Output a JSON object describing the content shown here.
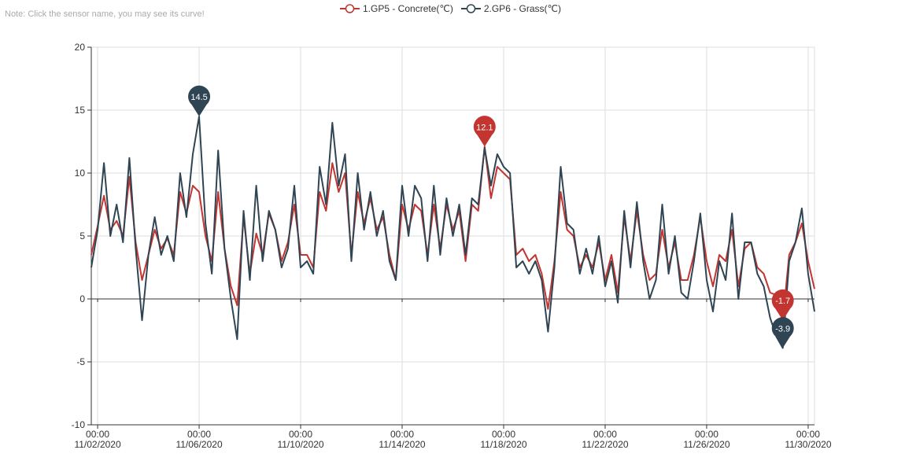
{
  "note": "Note: Click the sensor name, you may see its curve!",
  "legend": {
    "items": [
      {
        "label": "1.GP5 - Concrete(℃)",
        "color": "#c23531"
      },
      {
        "label": "2.GP6 - Grass(℃)",
        "color": "#2f4554"
      }
    ]
  },
  "chart_data": {
    "type": "line",
    "title": "",
    "xlabel": "",
    "ylabel": "",
    "ylim": [
      -10,
      20
    ],
    "yticks": [
      -10,
      -5,
      0,
      5,
      10,
      15,
      20
    ],
    "x_range": [
      "2020-11-01 18:00",
      "2020-11-30 06:00"
    ],
    "x_ticks": [
      {
        "time": "00:00",
        "date": "11/02/2020",
        "x": "2020-11-02 00:00"
      },
      {
        "time": "00:00",
        "date": "11/06/2020",
        "x": "2020-11-06 00:00"
      },
      {
        "time": "00:00",
        "date": "11/10/2020",
        "x": "2020-11-10 00:00"
      },
      {
        "time": "00:00",
        "date": "11/14/2020",
        "x": "2020-11-14 00:00"
      },
      {
        "time": "00:00",
        "date": "11/18/2020",
        "x": "2020-11-18 00:00"
      },
      {
        "time": "00:00",
        "date": "11/22/2020",
        "x": "2020-11-22 00:00"
      },
      {
        "time": "00:00",
        "date": "11/26/2020",
        "x": "2020-11-26 00:00"
      },
      {
        "time": "00:00",
        "date": "11/30/2020",
        "x": "2020-11-30 00:00"
      }
    ],
    "grid": true,
    "legend_position": "top-center",
    "series": [
      {
        "name": "1.GP5 - Concrete(℃)",
        "color": "#c23531",
        "points": [
          [
            "2020-11-01 18:00",
            3.5
          ],
          [
            "2020-11-02 00:00",
            5.8
          ],
          [
            "2020-11-02 06:00",
            8.2
          ],
          [
            "2020-11-02 12:00",
            5.5
          ],
          [
            "2020-11-02 18:00",
            6.2
          ],
          [
            "2020-11-03 00:00",
            5.0
          ],
          [
            "2020-11-03 06:00",
            9.7
          ],
          [
            "2020-11-03 12:00",
            4.5
          ],
          [
            "2020-11-03 18:00",
            1.5
          ],
          [
            "2020-11-04 00:00",
            3.5
          ],
          [
            "2020-11-04 06:00",
            5.5
          ],
          [
            "2020-11-04 12:00",
            4.0
          ],
          [
            "2020-11-04 18:00",
            4.8
          ],
          [
            "2020-11-05 00:00",
            3.5
          ],
          [
            "2020-11-05 06:00",
            8.5
          ],
          [
            "2020-11-05 12:00",
            6.8
          ],
          [
            "2020-11-05 18:00",
            9.0
          ],
          [
            "2020-11-06 00:00",
            8.5
          ],
          [
            "2020-11-06 06:00",
            5.0
          ],
          [
            "2020-11-06 12:00",
            3.0
          ],
          [
            "2020-11-06 18:00",
            8.5
          ],
          [
            "2020-11-07 00:00",
            4.0
          ],
          [
            "2020-11-07 06:00",
            1.0
          ],
          [
            "2020-11-07 12:00",
            -0.5
          ],
          [
            "2020-11-07 18:00",
            6.5
          ],
          [
            "2020-11-08 00:00",
            2.0
          ],
          [
            "2020-11-08 06:00",
            5.2
          ],
          [
            "2020-11-08 12:00",
            3.5
          ],
          [
            "2020-11-08 18:00",
            6.8
          ],
          [
            "2020-11-09 00:00",
            5.5
          ],
          [
            "2020-11-09 06:00",
            3.0
          ],
          [
            "2020-11-09 12:00",
            4.5
          ],
          [
            "2020-11-09 18:00",
            7.5
          ],
          [
            "2020-11-10 00:00",
            3.5
          ],
          [
            "2020-11-10 06:00",
            3.5
          ],
          [
            "2020-11-10 12:00",
            2.5
          ],
          [
            "2020-11-10 18:00",
            8.5
          ],
          [
            "2020-11-11 00:00",
            7.0
          ],
          [
            "2020-11-11 06:00",
            10.8
          ],
          [
            "2020-11-11 12:00",
            8.5
          ],
          [
            "2020-11-11 18:00",
            10.0
          ],
          [
            "2020-11-12 00:00",
            3.5
          ],
          [
            "2020-11-12 06:00",
            8.5
          ],
          [
            "2020-11-12 12:00",
            6.0
          ],
          [
            "2020-11-12 18:00",
            8.0
          ],
          [
            "2020-11-13 00:00",
            5.5
          ],
          [
            "2020-11-13 06:00",
            6.5
          ],
          [
            "2020-11-13 12:00",
            3.5
          ],
          [
            "2020-11-13 18:00",
            1.5
          ],
          [
            "2020-11-14 00:00",
            7.5
          ],
          [
            "2020-11-14 06:00",
            5.5
          ],
          [
            "2020-11-14 12:00",
            7.5
          ],
          [
            "2020-11-14 18:00",
            7.0
          ],
          [
            "2020-11-15 00:00",
            3.5
          ],
          [
            "2020-11-15 06:00",
            7.5
          ],
          [
            "2020-11-15 12:00",
            4.0
          ],
          [
            "2020-11-15 18:00",
            7.5
          ],
          [
            "2020-11-16 00:00",
            5.5
          ],
          [
            "2020-11-16 06:00",
            7.0
          ],
          [
            "2020-11-16 12:00",
            3.0
          ],
          [
            "2020-11-16 18:00",
            7.5
          ],
          [
            "2020-11-17 00:00",
            7.0
          ],
          [
            "2020-11-17 06:00",
            12.1
          ],
          [
            "2020-11-17 12:00",
            8.0
          ],
          [
            "2020-11-17 18:00",
            10.5
          ],
          [
            "2020-11-18 00:00",
            10.0
          ],
          [
            "2020-11-18 06:00",
            9.5
          ],
          [
            "2020-11-18 12:00",
            3.5
          ],
          [
            "2020-11-18 18:00",
            4.0
          ],
          [
            "2020-11-19 00:00",
            3.0
          ],
          [
            "2020-11-19 06:00",
            3.5
          ],
          [
            "2020-11-19 12:00",
            2.0
          ],
          [
            "2020-11-19 18:00",
            -0.8
          ],
          [
            "2020-11-20 00:00",
            3.0
          ],
          [
            "2020-11-20 06:00",
            8.5
          ],
          [
            "2020-11-20 12:00",
            5.5
          ],
          [
            "2020-11-20 18:00",
            5.0
          ],
          [
            "2020-11-21 00:00",
            2.5
          ],
          [
            "2020-11-21 06:00",
            3.5
          ],
          [
            "2020-11-21 12:00",
            2.5
          ],
          [
            "2020-11-21 18:00",
            4.5
          ],
          [
            "2020-11-22 00:00",
            1.5
          ],
          [
            "2020-11-22 06:00",
            3.5
          ],
          [
            "2020-11-22 12:00",
            0.5
          ],
          [
            "2020-11-22 18:00",
            6.5
          ],
          [
            "2020-11-23 00:00",
            3.0
          ],
          [
            "2020-11-23 06:00",
            7.0
          ],
          [
            "2020-11-23 12:00",
            3.5
          ],
          [
            "2020-11-23 18:00",
            1.5
          ],
          [
            "2020-11-24 00:00",
            2.0
          ],
          [
            "2020-11-24 06:00",
            5.5
          ],
          [
            "2020-11-24 12:00",
            2.5
          ],
          [
            "2020-11-24 18:00",
            4.5
          ],
          [
            "2020-11-25 00:00",
            1.5
          ],
          [
            "2020-11-25 06:00",
            1.5
          ],
          [
            "2020-11-25 12:00",
            3.5
          ],
          [
            "2020-11-25 18:00",
            6.5
          ],
          [
            "2020-11-26 00:00",
            3.0
          ],
          [
            "2020-11-26 06:00",
            1.0
          ],
          [
            "2020-11-26 12:00",
            3.5
          ],
          [
            "2020-11-26 18:00",
            3.0
          ],
          [
            "2020-11-27 00:00",
            5.5
          ],
          [
            "2020-11-27 06:00",
            1.0
          ],
          [
            "2020-11-27 12:00",
            4.0
          ],
          [
            "2020-11-27 18:00",
            4.5
          ],
          [
            "2020-11-28 00:00",
            2.5
          ],
          [
            "2020-11-28 06:00",
            2.0
          ],
          [
            "2020-11-28 12:00",
            0.5
          ],
          [
            "2020-11-28 18:00",
            0.3
          ],
          [
            "2020-11-29 00:00",
            -1.7
          ],
          [
            "2020-11-29 06:00",
            3.5
          ],
          [
            "2020-11-29 12:00",
            4.5
          ],
          [
            "2020-11-29 18:00",
            6.0
          ],
          [
            "2020-11-30 00:00",
            3.0
          ],
          [
            "2020-11-30 06:00",
            0.8
          ]
        ]
      },
      {
        "name": "2.GP6 - Grass(℃)",
        "color": "#2f4554",
        "points": [
          [
            "2020-11-01 18:00",
            2.5
          ],
          [
            "2020-11-02 00:00",
            5.5
          ],
          [
            "2020-11-02 06:00",
            10.8
          ],
          [
            "2020-11-02 12:00",
            5.0
          ],
          [
            "2020-11-02 18:00",
            7.5
          ],
          [
            "2020-11-03 00:00",
            4.5
          ],
          [
            "2020-11-03 06:00",
            11.2
          ],
          [
            "2020-11-03 12:00",
            4.0
          ],
          [
            "2020-11-03 18:00",
            -1.7
          ],
          [
            "2020-11-04 00:00",
            3.5
          ],
          [
            "2020-11-04 06:00",
            6.5
          ],
          [
            "2020-11-04 12:00",
            3.5
          ],
          [
            "2020-11-04 18:00",
            5.0
          ],
          [
            "2020-11-05 00:00",
            3.0
          ],
          [
            "2020-11-05 06:00",
            10.0
          ],
          [
            "2020-11-05 12:00",
            6.5
          ],
          [
            "2020-11-05 18:00",
            11.5
          ],
          [
            "2020-11-06 00:00",
            14.5
          ],
          [
            "2020-11-06 06:00",
            6.0
          ],
          [
            "2020-11-06 12:00",
            2.0
          ],
          [
            "2020-11-06 18:00",
            11.8
          ],
          [
            "2020-11-07 00:00",
            4.0
          ],
          [
            "2020-11-07 06:00",
            0.0
          ],
          [
            "2020-11-07 12:00",
            -3.2
          ],
          [
            "2020-11-07 18:00",
            7.0
          ],
          [
            "2020-11-08 00:00",
            1.5
          ],
          [
            "2020-11-08 06:00",
            9.0
          ],
          [
            "2020-11-08 12:00",
            3.0
          ],
          [
            "2020-11-08 18:00",
            7.0
          ],
          [
            "2020-11-09 00:00",
            5.5
          ],
          [
            "2020-11-09 06:00",
            2.5
          ],
          [
            "2020-11-09 12:00",
            4.0
          ],
          [
            "2020-11-09 18:00",
            9.0
          ],
          [
            "2020-11-10 00:00",
            2.5
          ],
          [
            "2020-11-10 06:00",
            3.0
          ],
          [
            "2020-11-10 12:00",
            2.0
          ],
          [
            "2020-11-10 18:00",
            10.5
          ],
          [
            "2020-11-11 00:00",
            7.5
          ],
          [
            "2020-11-11 06:00",
            14.0
          ],
          [
            "2020-11-11 12:00",
            9.0
          ],
          [
            "2020-11-11 18:00",
            11.5
          ],
          [
            "2020-11-12 00:00",
            3.0
          ],
          [
            "2020-11-12 06:00",
            10.0
          ],
          [
            "2020-11-12 12:00",
            5.5
          ],
          [
            "2020-11-12 18:00",
            8.5
          ],
          [
            "2020-11-13 00:00",
            5.0
          ],
          [
            "2020-11-13 06:00",
            7.0
          ],
          [
            "2020-11-13 12:00",
            3.0
          ],
          [
            "2020-11-13 18:00",
            1.5
          ],
          [
            "2020-11-14 00:00",
            9.0
          ],
          [
            "2020-11-14 06:00",
            5.0
          ],
          [
            "2020-11-14 12:00",
            9.0
          ],
          [
            "2020-11-14 18:00",
            8.0
          ],
          [
            "2020-11-15 00:00",
            3.0
          ],
          [
            "2020-11-15 06:00",
            9.0
          ],
          [
            "2020-11-15 12:00",
            3.5
          ],
          [
            "2020-11-15 18:00",
            8.0
          ],
          [
            "2020-11-16 00:00",
            5.0
          ],
          [
            "2020-11-16 06:00",
            7.5
          ],
          [
            "2020-11-16 12:00",
            3.5
          ],
          [
            "2020-11-16 18:00",
            8.0
          ],
          [
            "2020-11-17 00:00",
            7.5
          ],
          [
            "2020-11-17 06:00",
            12.0
          ],
          [
            "2020-11-17 12:00",
            9.0
          ],
          [
            "2020-11-17 18:00",
            11.5
          ],
          [
            "2020-11-18 00:00",
            10.5
          ],
          [
            "2020-11-18 06:00",
            10.0
          ],
          [
            "2020-11-18 12:00",
            2.5
          ],
          [
            "2020-11-18 18:00",
            3.0
          ],
          [
            "2020-11-19 00:00",
            2.0
          ],
          [
            "2020-11-19 06:00",
            3.0
          ],
          [
            "2020-11-19 12:00",
            1.5
          ],
          [
            "2020-11-19 18:00",
            -2.6
          ],
          [
            "2020-11-20 00:00",
            2.5
          ],
          [
            "2020-11-20 06:00",
            10.5
          ],
          [
            "2020-11-20 12:00",
            6.0
          ],
          [
            "2020-11-20 18:00",
            5.5
          ],
          [
            "2020-11-21 00:00",
            2.0
          ],
          [
            "2020-11-21 06:00",
            4.0
          ],
          [
            "2020-11-21 12:00",
            2.0
          ],
          [
            "2020-11-21 18:00",
            5.0
          ],
          [
            "2020-11-22 00:00",
            1.0
          ],
          [
            "2020-11-22 06:00",
            3.0
          ],
          [
            "2020-11-22 12:00",
            -0.3
          ],
          [
            "2020-11-22 18:00",
            7.0
          ],
          [
            "2020-11-23 00:00",
            2.5
          ],
          [
            "2020-11-23 06:00",
            7.7
          ],
          [
            "2020-11-23 12:00",
            3.0
          ],
          [
            "2020-11-23 18:00",
            0.0
          ],
          [
            "2020-11-24 00:00",
            1.5
          ],
          [
            "2020-11-24 06:00",
            7.5
          ],
          [
            "2020-11-24 12:00",
            2.0
          ],
          [
            "2020-11-24 18:00",
            5.0
          ],
          [
            "2020-11-25 00:00",
            0.5
          ],
          [
            "2020-11-25 06:00",
            0.0
          ],
          [
            "2020-11-25 12:00",
            3.0
          ],
          [
            "2020-11-25 18:00",
            6.8
          ],
          [
            "2020-11-26 00:00",
            1.5
          ],
          [
            "2020-11-26 06:00",
            -1.0
          ],
          [
            "2020-11-26 12:00",
            3.0
          ],
          [
            "2020-11-26 18:00",
            1.5
          ],
          [
            "2020-11-27 00:00",
            6.8
          ],
          [
            "2020-11-27 06:00",
            0.0
          ],
          [
            "2020-11-27 12:00",
            4.5
          ],
          [
            "2020-11-27 18:00",
            4.5
          ],
          [
            "2020-11-28 00:00",
            2.0
          ],
          [
            "2020-11-28 06:00",
            1.0
          ],
          [
            "2020-11-28 12:00",
            -1.5
          ],
          [
            "2020-11-28 18:00",
            -3.0
          ],
          [
            "2020-11-29 00:00",
            -3.9
          ],
          [
            "2020-11-29 06:00",
            3.0
          ],
          [
            "2020-11-29 12:00",
            4.5
          ],
          [
            "2020-11-29 18:00",
            7.2
          ],
          [
            "2020-11-30 00:00",
            2.0
          ],
          [
            "2020-11-30 06:00",
            -1.0
          ]
        ]
      }
    ],
    "markers": [
      {
        "series": 0,
        "label": "12.1",
        "type": "max",
        "x": "2020-11-17 06:00",
        "y": 12.1
      },
      {
        "series": 0,
        "label": "-1.7",
        "type": "min",
        "x": "2020-11-29 00:00",
        "y": -1.7
      },
      {
        "series": 1,
        "label": "14.5",
        "type": "max",
        "x": "2020-11-06 00:00",
        "y": 14.5
      },
      {
        "series": 1,
        "label": "-3.9",
        "type": "min",
        "x": "2020-11-29 00:00",
        "y": -3.9
      }
    ]
  }
}
